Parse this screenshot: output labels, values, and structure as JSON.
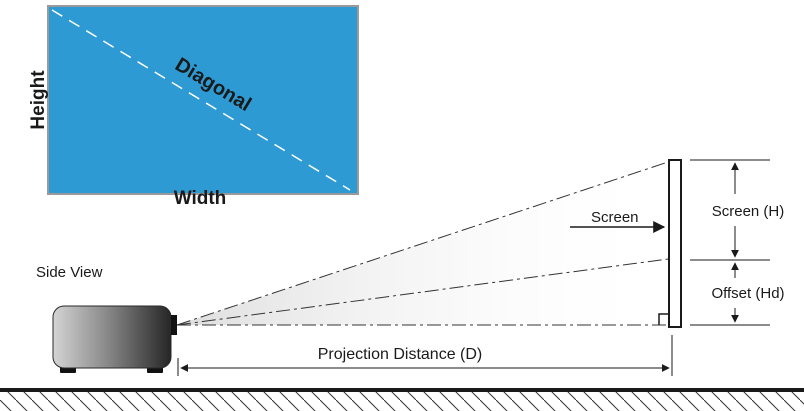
{
  "screen_rect": {
    "height_label": "Height",
    "diagonal_label": "Diagonal",
    "width_label": "Width"
  },
  "side_view": {
    "title": "Side View",
    "screen_label": "Screen",
    "screen_height_label": "Screen (H)",
    "offset_label": "Offset (Hd)",
    "distance_label": "Projection Distance (D)"
  },
  "colors": {
    "screen_fill": "#2e9ad4",
    "ink": "#1a1a1a"
  }
}
